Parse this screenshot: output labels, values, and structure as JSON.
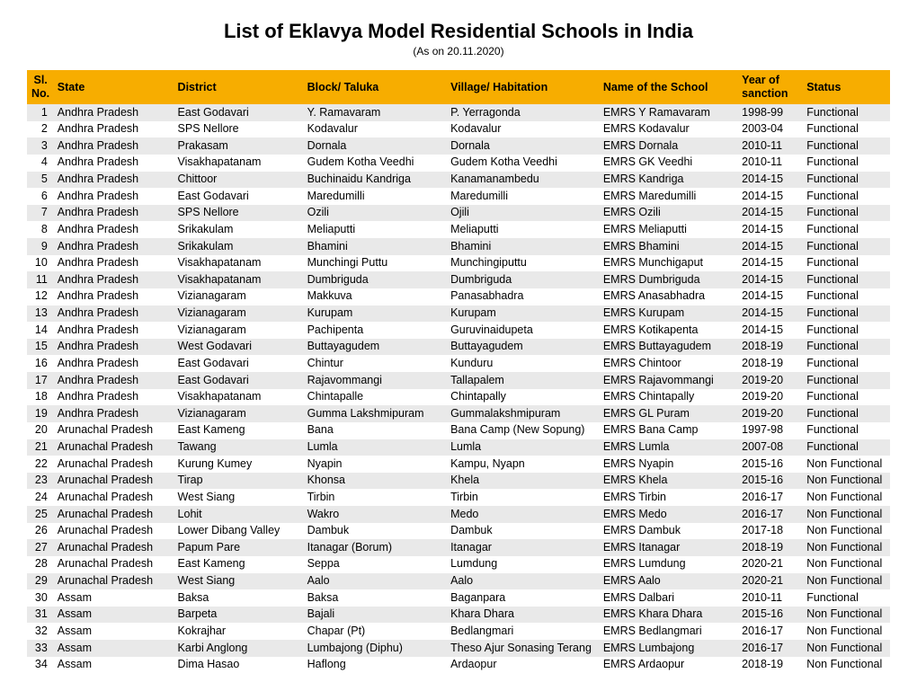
{
  "title": "List of Eklavya Model Residential Schools in India",
  "subtitle": "(As on 20.11.2020)",
  "columns": {
    "sl": "Sl. No.",
    "state": "State",
    "district": "District",
    "block": "Block/ Taluka",
    "village": "Village/ Habitation",
    "school": "Name of the School",
    "year": "Year of sanction",
    "status": "Status"
  },
  "rows": [
    {
      "sl": "1",
      "state": "Andhra Pradesh",
      "district": "East Godavari",
      "block": "Y. Ramavaram",
      "village": "P. Yerragonda",
      "school": "EMRS Y Ramavaram",
      "year": "1998-99",
      "status": "Functional"
    },
    {
      "sl": "2",
      "state": "Andhra Pradesh",
      "district": "SPS Nellore",
      "block": "Kodavalur",
      "village": "Kodavalur",
      "school": "EMRS Kodavalur",
      "year": "2003-04",
      "status": "Functional"
    },
    {
      "sl": "3",
      "state": "Andhra Pradesh",
      "district": "Prakasam",
      "block": "Dornala",
      "village": "Dornala",
      "school": "EMRS Dornala",
      "year": "2010-11",
      "status": "Functional"
    },
    {
      "sl": "4",
      "state": "Andhra Pradesh",
      "district": "Visakhapatanam",
      "block": "Gudem Kotha Veedhi",
      "village": "Gudem Kotha Veedhi",
      "school": "EMRS GK Veedhi",
      "year": "2010-11",
      "status": "Functional"
    },
    {
      "sl": "5",
      "state": "Andhra Pradesh",
      "district": "Chittoor",
      "block": "Buchinaidu Kandriga",
      "village": "Kanamanambedu",
      "school": "EMRS Kandriga",
      "year": "2014-15",
      "status": "Functional"
    },
    {
      "sl": "6",
      "state": "Andhra Pradesh",
      "district": "East Godavari",
      "block": "Maredumilli",
      "village": "Maredumilli",
      "school": "EMRS Maredumilli",
      "year": "2014-15",
      "status": "Functional"
    },
    {
      "sl": "7",
      "state": "Andhra Pradesh",
      "district": "SPS Nellore",
      "block": "Ozili",
      "village": "Ojili",
      "school": "EMRS Ozili",
      "year": "2014-15",
      "status": "Functional"
    },
    {
      "sl": "8",
      "state": "Andhra Pradesh",
      "district": "Srikakulam",
      "block": "Meliaputti",
      "village": "Meliaputti",
      "school": "EMRS Meliaputti",
      "year": "2014-15",
      "status": "Functional"
    },
    {
      "sl": "9",
      "state": "Andhra Pradesh",
      "district": "Srikakulam",
      "block": "Bhamini",
      "village": "Bhamini",
      "school": "EMRS Bhamini",
      "year": "2014-15",
      "status": "Functional"
    },
    {
      "sl": "10",
      "state": "Andhra Pradesh",
      "district": "Visakhapatanam",
      "block": "Munchingi Puttu",
      "village": "Munchingiputtu",
      "school": "EMRS Munchigaput",
      "year": "2014-15",
      "status": "Functional"
    },
    {
      "sl": "11",
      "state": "Andhra Pradesh",
      "district": "Visakhapatanam",
      "block": "Dumbriguda",
      "village": "Dumbriguda",
      "school": "EMRS Dumbriguda",
      "year": "2014-15",
      "status": "Functional"
    },
    {
      "sl": "12",
      "state": "Andhra Pradesh",
      "district": "Vizianagaram",
      "block": "Makkuva",
      "village": "Panasabhadra",
      "school": "EMRS Anasabhadra",
      "year": "2014-15",
      "status": "Functional"
    },
    {
      "sl": "13",
      "state": "Andhra Pradesh",
      "district": "Vizianagaram",
      "block": "Kurupam",
      "village": "Kurupam",
      "school": "EMRS Kurupam",
      "year": "2014-15",
      "status": "Functional"
    },
    {
      "sl": "14",
      "state": "Andhra Pradesh",
      "district": "Vizianagaram",
      "block": "Pachipenta",
      "village": "Guruvinaidupeta",
      "school": "EMRS Kotikapenta",
      "year": "2014-15",
      "status": "Functional"
    },
    {
      "sl": "15",
      "state": "Andhra Pradesh",
      "district": "West Godavari",
      "block": "Buttayagudem",
      "village": "Buttayagudem",
      "school": "EMRS Buttayagudem",
      "year": "2018-19",
      "status": "Functional"
    },
    {
      "sl": "16",
      "state": "Andhra Pradesh",
      "district": "East Godavari",
      "block": "Chintur",
      "village": "Kunduru",
      "school": "EMRS Chintoor",
      "year": "2018-19",
      "status": "Functional"
    },
    {
      "sl": "17",
      "state": "Andhra Pradesh",
      "district": "East Godavari",
      "block": "Rajavommangi",
      "village": "Tallapalem",
      "school": "EMRS Rajavommangi",
      "year": "2019-20",
      "status": "Functional"
    },
    {
      "sl": "18",
      "state": "Andhra Pradesh",
      "district": "Visakhapatanam",
      "block": "Chintapalle",
      "village": "Chintapally",
      "school": "EMRS Chintapally",
      "year": "2019-20",
      "status": "Functional"
    },
    {
      "sl": "19",
      "state": "Andhra Pradesh",
      "district": "Vizianagaram",
      "block": "Gumma Lakshmipuram",
      "village": "Gummalakshmipuram",
      "school": "EMRS GL Puram",
      "year": "2019-20",
      "status": "Functional"
    },
    {
      "sl": "20",
      "state": "Arunachal Pradesh",
      "district": "East Kameng",
      "block": "Bana",
      "village": "Bana Camp (New Sopung)",
      "school": "EMRS Bana Camp",
      "year": "1997-98",
      "status": "Functional"
    },
    {
      "sl": "21",
      "state": "Arunachal Pradesh",
      "district": "Tawang",
      "block": "Lumla",
      "village": "Lumla",
      "school": "EMRS Lumla",
      "year": "2007-08",
      "status": "Functional"
    },
    {
      "sl": "22",
      "state": "Arunachal Pradesh",
      "district": "Kurung Kumey",
      "block": "Nyapin",
      "village": "Kampu, Nyapn",
      "school": "EMRS Nyapin",
      "year": "2015-16",
      "status": "Non Functional"
    },
    {
      "sl": "23",
      "state": "Arunachal Pradesh",
      "district": "Tirap",
      "block": "Khonsa",
      "village": "Khela",
      "school": "EMRS Khela",
      "year": "2015-16",
      "status": "Non Functional"
    },
    {
      "sl": "24",
      "state": "Arunachal Pradesh",
      "district": "West Siang",
      "block": "Tirbin",
      "village": "Tirbin",
      "school": "EMRS Tirbin",
      "year": "2016-17",
      "status": "Non Functional"
    },
    {
      "sl": "25",
      "state": "Arunachal Pradesh",
      "district": "Lohit",
      "block": "Wakro",
      "village": "Medo",
      "school": "EMRS Medo",
      "year": "2016-17",
      "status": "Non Functional"
    },
    {
      "sl": "26",
      "state": "Arunachal Pradesh",
      "district": "Lower Dibang Valley",
      "block": "Dambuk",
      "village": "Dambuk",
      "school": "EMRS Dambuk",
      "year": "2017-18",
      "status": "Non Functional"
    },
    {
      "sl": "27",
      "state": "Arunachal Pradesh",
      "district": "Papum Pare",
      "block": "Itanagar (Borum)",
      "village": "Itanagar",
      "school": "EMRS Itanagar",
      "year": "2018-19",
      "status": "Non Functional"
    },
    {
      "sl": "28",
      "state": "Arunachal Pradesh",
      "district": "East Kameng",
      "block": "Seppa",
      "village": "Lumdung",
      "school": "EMRS Lumdung",
      "year": "2020-21",
      "status": "Non Functional"
    },
    {
      "sl": "29",
      "state": "Arunachal Pradesh",
      "district": "West Siang",
      "block": "Aalo",
      "village": "Aalo",
      "school": "EMRS Aalo",
      "year": "2020-21",
      "status": "Non Functional"
    },
    {
      "sl": "30",
      "state": "Assam",
      "district": "Baksa",
      "block": "Baksa",
      "village": "Baganpara",
      "school": "EMRS Dalbari",
      "year": "2010-11",
      "status": "Functional"
    },
    {
      "sl": "31",
      "state": "Assam",
      "district": "Barpeta",
      "block": "Bajali",
      "village": "Khara Dhara",
      "school": "EMRS Khara Dhara",
      "year": "2015-16",
      "status": "Non Functional"
    },
    {
      "sl": "32",
      "state": "Assam",
      "district": "Kokrajhar",
      "block": "Chapar (Pt)",
      "village": "Bedlangmari",
      "school": "EMRS Bedlangmari",
      "year": "2016-17",
      "status": "Non Functional"
    },
    {
      "sl": "33",
      "state": "Assam",
      "district": "Karbi Anglong",
      "block": "Lumbajong (Diphu)",
      "village": "Theso Ajur Sonasing Terang",
      "school": "EMRS Lumbajong",
      "year": "2016-17",
      "status": "Non Functional"
    },
    {
      "sl": "34",
      "state": "Assam",
      "district": "Dima Hasao",
      "block": "Haflong",
      "village": "Ardaopur",
      "school": "EMRS Ardaopur",
      "year": "2018-19",
      "status": "Non Functional"
    }
  ]
}
